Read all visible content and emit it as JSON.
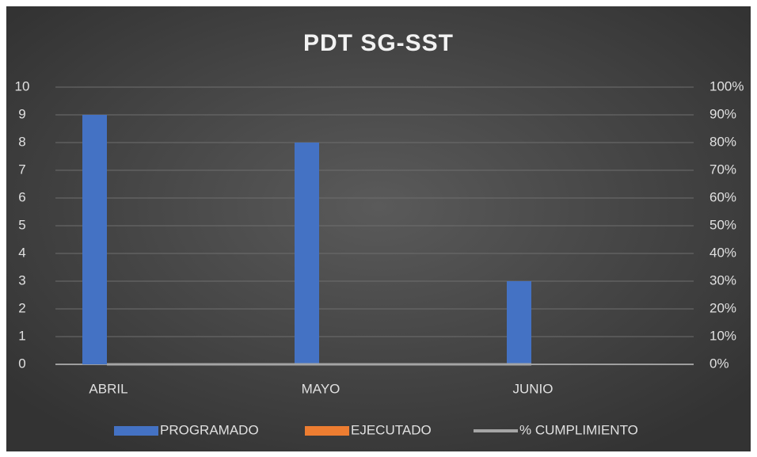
{
  "chart_data": {
    "type": "bar",
    "title": "PDT SG-SST",
    "categories": [
      "ABRIL",
      "MAYO",
      "JUNIO"
    ],
    "series": [
      {
        "name": "PROGRAMADO",
        "color": "#4472c4",
        "values": [
          9,
          8,
          3
        ]
      },
      {
        "name": "EJECUTADO",
        "color": "#ed7d31",
        "values": [
          0,
          0,
          0
        ]
      },
      {
        "name": "% CUMPLIMIENTO",
        "color": "#a5a5a5",
        "values": [
          0,
          0,
          0
        ],
        "axis": "y2",
        "type": "line"
      }
    ],
    "ylim": [
      0,
      10
    ],
    "yticks": [
      0,
      1,
      2,
      3,
      4,
      5,
      6,
      7,
      8,
      9,
      10
    ],
    "y2lim": [
      0,
      100
    ],
    "y2ticks": [
      {
        "value": 0,
        "label": "0%"
      },
      {
        "value": 10,
        "label": "10%"
      },
      {
        "value": 20,
        "label": "20%"
      },
      {
        "value": 30,
        "label": "30%"
      },
      {
        "value": 40,
        "label": "40%"
      },
      {
        "value": 50,
        "label": "50%"
      },
      {
        "value": 60,
        "label": "60%"
      },
      {
        "value": 70,
        "label": "70%"
      },
      {
        "value": 80,
        "label": "80%"
      },
      {
        "value": 90,
        "label": "90%"
      },
      {
        "value": 100,
        "label": "100%"
      }
    ],
    "grid": true,
    "legend": "bottom"
  }
}
